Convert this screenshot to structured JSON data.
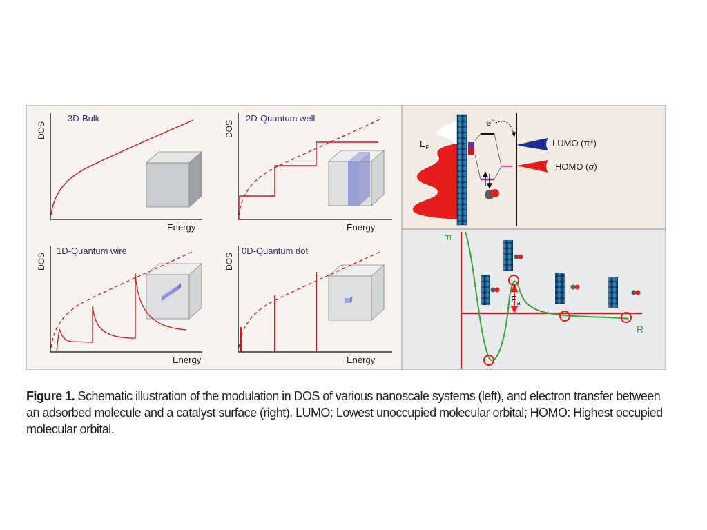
{
  "panels": [
    {
      "title": "3D-Bulk",
      "ylabel": "DOS",
      "xlabel": "Energy"
    },
    {
      "title": "2D-Quantum well",
      "ylabel": "DOS",
      "xlabel": "Energy"
    },
    {
      "title": "1D-Quantum wire",
      "ylabel": "DOS",
      "xlabel": "Energy"
    },
    {
      "title": "0D-Quantum dot",
      "ylabel": "DOS",
      "xlabel": "Energy"
    }
  ],
  "adsorption": {
    "electron_label": "e",
    "electron_sup": "−",
    "fermi_label": "E",
    "fermi_sub": "F",
    "lumo_label": "LUMO (π*)",
    "homo_label": "HOMO (σ)"
  },
  "energy_curve": {
    "y_axis_label": "E",
    "x_axis_label": "R",
    "barrier_label": "E",
    "barrier_sub": "a"
  },
  "caption": {
    "label": "Figure 1.",
    "text": " Schematic illustration of the modulation in DOS of various nanoscale systems (left), and electron transfer between an adsorbed molecule and a catalyst surface (right). LUMO: Lowest unoccupied molecular orbital; HOMO: Highest occupied molecular orbital."
  },
  "colors": {
    "curve_red": "#d8151b",
    "title_blue": "#2b2b8f",
    "left_bg": "#f7f4ef",
    "top_right_bg": "#f1ebe3",
    "bottom_right_bg": "#e8eaec",
    "green_curve": "#3aa53a"
  }
}
